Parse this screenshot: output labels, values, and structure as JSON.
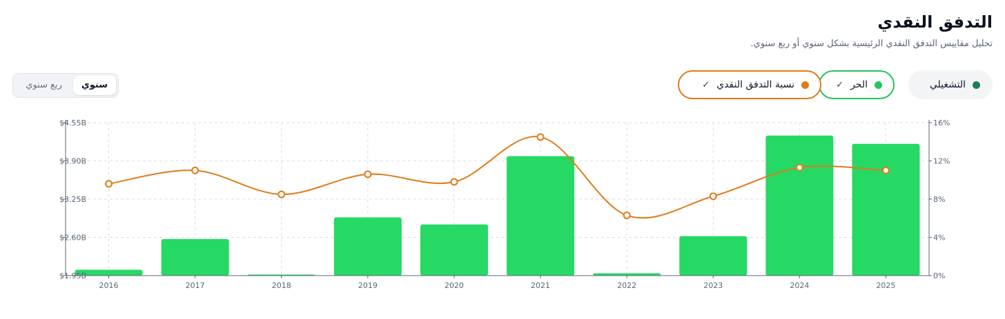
{
  "header": {
    "title": "التدفق النقدي",
    "subtitle": "تحليل مقاييس التدفق النقدي الرئيسية بشكل سنوي أو ربع سنوي."
  },
  "period_toggle": {
    "annual": "سنوي",
    "quarterly": "ربع سنوي",
    "selected": "annual"
  },
  "series_toggles": {
    "operating": {
      "label": "التشغيلي",
      "color": "#1a7f54",
      "active": false
    },
    "free": {
      "label": "الحر",
      "color": "#22c55e",
      "active": true
    },
    "ratio": {
      "label": "نسبة التدفق النقدي",
      "color": "#e07a17",
      "active": true
    }
  },
  "chart_data": {
    "type": "bar",
    "categories": [
      "2016",
      "2017",
      "2018",
      "2019",
      "2020",
      "2021",
      "2022",
      "2023",
      "2024",
      "2025"
    ],
    "series": [
      {
        "name": "الحر",
        "type": "bar",
        "axis": "left",
        "color": "#26d964",
        "values": [
          2.05,
          2.57,
          1.96,
          2.94,
          2.82,
          3.98,
          1.99,
          2.62,
          4.33,
          4.19
        ]
      },
      {
        "name": "نسبة التدفق النقدي",
        "type": "line",
        "axis": "right",
        "color": "#e07a17",
        "values": [
          9.6,
          11.0,
          8.5,
          10.6,
          9.8,
          14.5,
          6.3,
          8.3,
          11.3,
          11.0
        ]
      }
    ],
    "y_left": {
      "ticks": [
        "$1.95B",
        "$2.60B",
        "$3.25B",
        "$3.90B",
        "$4.55B"
      ],
      "range": [
        1.95,
        4.55
      ]
    },
    "y_right": {
      "ticks": [
        "0%",
        "4%",
        "8%",
        "12%",
        "16%"
      ],
      "range": [
        0,
        16
      ]
    },
    "grid": true
  }
}
